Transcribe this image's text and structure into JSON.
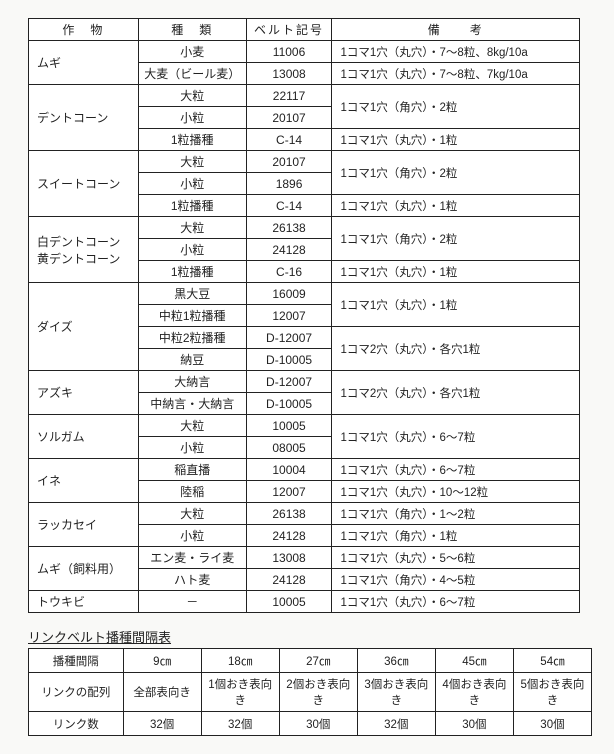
{
  "main": {
    "headers": {
      "crop": "作　物",
      "type": "種　類",
      "code": "ベルト記号",
      "remark": "備　　考"
    },
    "groups": [
      {
        "crop": "ムギ",
        "rows": [
          {
            "type": "小麦",
            "code": "11006",
            "remark": "1コマ1穴（丸穴）・7～8粒、8kg/10a"
          },
          {
            "type": "大麦（ビール麦）",
            "code": "13008",
            "remark": "1コマ1穴（丸穴）・7～8粒、7kg/10a"
          }
        ]
      },
      {
        "crop": "デントコーン",
        "rows": [
          {
            "type": "大粒",
            "code": "22117",
            "remark": "1コマ1穴（角穴）・2粒",
            "span": 2
          },
          {
            "type": "小粒",
            "code": "20107"
          },
          {
            "type": "1粒播種",
            "code": "C-14",
            "remark": "1コマ1穴（丸穴）・1粒"
          }
        ]
      },
      {
        "crop": "スイートコーン",
        "rows": [
          {
            "type": "大粒",
            "code": "20107",
            "remark": "1コマ1穴（角穴）・2粒",
            "span": 2
          },
          {
            "type": "小粒",
            "code": "1896"
          },
          {
            "type": "1粒播種",
            "code": "C-14",
            "remark": "1コマ1穴（丸穴）・1粒"
          }
        ]
      },
      {
        "crop": "白デントコーン\n黄デントコーン",
        "rows": [
          {
            "type": "大粒",
            "code": "26138",
            "remark": "1コマ1穴（角穴）・2粒",
            "span": 2
          },
          {
            "type": "小粒",
            "code": "24128"
          },
          {
            "type": "1粒播種",
            "code": "C-16",
            "remark": "1コマ1穴（丸穴）・1粒"
          }
        ]
      },
      {
        "crop": "ダイズ",
        "rows": [
          {
            "type": "黒大豆",
            "code": "16009",
            "remark": "1コマ1穴（丸穴）・1粒",
            "span": 2
          },
          {
            "type": "中粒1粒播種",
            "code": "12007"
          },
          {
            "type": "中粒2粒播種",
            "code": "D-12007",
            "remark": "1コマ2穴（丸穴）・各穴1粒",
            "span": 2
          },
          {
            "type": "納豆",
            "code": "D-10005"
          }
        ]
      },
      {
        "crop": "アズキ",
        "rows": [
          {
            "type": "大納言",
            "code": "D-12007",
            "remark": "1コマ2穴（丸穴）・各穴1粒",
            "span": 2
          },
          {
            "type": "中納言・大納言",
            "code": "D-10005"
          }
        ]
      },
      {
        "crop": "ソルガム",
        "rows": [
          {
            "type": "大粒",
            "code": "10005",
            "remark": "1コマ1穴（丸穴）・6～7粒",
            "span": 2
          },
          {
            "type": "小粒",
            "code": "08005"
          }
        ]
      },
      {
        "crop": "イネ",
        "rows": [
          {
            "type": "稲直播",
            "code": "10004",
            "remark": "1コマ1穴（丸穴）・6～7粒"
          },
          {
            "type": "陸稲",
            "code": "12007",
            "remark": "1コマ1穴（丸穴）・10～12粒"
          }
        ]
      },
      {
        "crop": "ラッカセイ",
        "rows": [
          {
            "type": "大粒",
            "code": "26138",
            "remark": "1コマ1穴（角穴）・1～2粒"
          },
          {
            "type": "小粒",
            "code": "24128",
            "remark": "1コマ1穴（角穴）・1粒"
          }
        ]
      },
      {
        "crop": "ムギ（飼料用）",
        "rows": [
          {
            "type": "エン麦・ライ麦",
            "code": "13008",
            "remark": "1コマ1穴（丸穴）・5～6粒"
          },
          {
            "type": "ハト麦",
            "code": "24128",
            "remark": "1コマ1穴（角穴）・4～5粒"
          }
        ]
      },
      {
        "crop": "トウキビ",
        "rows": [
          {
            "type": "－",
            "code": "10005",
            "remark": "1コマ1穴（丸穴）・6～7粒"
          }
        ]
      }
    ]
  },
  "link": {
    "title": "リンクベルト播種間隔表",
    "cols": [
      "9㎝",
      "18㎝",
      "27㎝",
      "36㎝",
      "45㎝",
      "54㎝"
    ],
    "rows": [
      {
        "head": "播種間隔",
        "useCols": true
      },
      {
        "head": "リンクの配列",
        "cells": [
          "全部表向き",
          "1個おき表向き",
          "2個おき表向き",
          "3個おき表向き",
          "4個おき表向き",
          "5個おき表向き"
        ]
      },
      {
        "head": "リンク数",
        "cells": [
          "32個",
          "32個",
          "30個",
          "32個",
          "30個",
          "30個"
        ]
      }
    ]
  }
}
